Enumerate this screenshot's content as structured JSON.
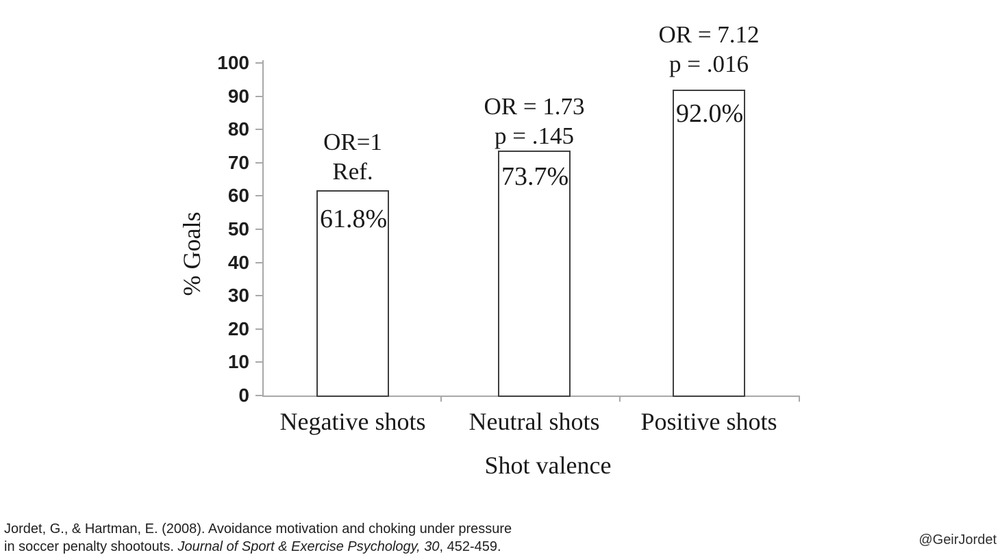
{
  "chart_data": {
    "type": "bar",
    "title": "",
    "xlabel": "Shot valence",
    "ylabel": "% Goals",
    "ylim": [
      0,
      100
    ],
    "y_ticks": [
      0,
      10,
      20,
      30,
      40,
      50,
      60,
      70,
      80,
      90,
      100
    ],
    "grid": false,
    "legend": false,
    "categories": [
      "Negative shots",
      "Neutral shots",
      "Positive shots"
    ],
    "values": [
      61.8,
      73.7,
      92.0
    ],
    "bars": [
      {
        "category": "Negative shots",
        "value": 61.8,
        "value_label": "61.8%",
        "or_line": "OR=1",
        "p_line": "Ref."
      },
      {
        "category": "Neutral shots",
        "value": 73.7,
        "value_label": "73.7%",
        "or_line": "OR = 1.73",
        "p_line": "p = .145"
      },
      {
        "category": "Positive shots",
        "value": 92.0,
        "value_label": "92.0%",
        "or_line": "OR = 7.12",
        "p_line": "p = .016"
      }
    ],
    "bar_fill": "#ffffff",
    "bar_border_color": "#3e3e3e"
  },
  "footer": {
    "citation_line1": "Jordet, G., & Hartman, E. (2008). Avoidance motivation and choking under pressure",
    "citation_line2_prefix": "in soccer penalty shootouts. ",
    "citation_line2_italic": "Journal of Sport & Exercise Psychology, 30",
    "citation_line2_suffix": ", 452-459.",
    "twitter_handle": "@GeirJordet"
  },
  "colors": {
    "text": "#1a1a1a",
    "bar_border": "#3e3e3e",
    "axis": "#a8a8a8",
    "background": "#ffffff"
  }
}
